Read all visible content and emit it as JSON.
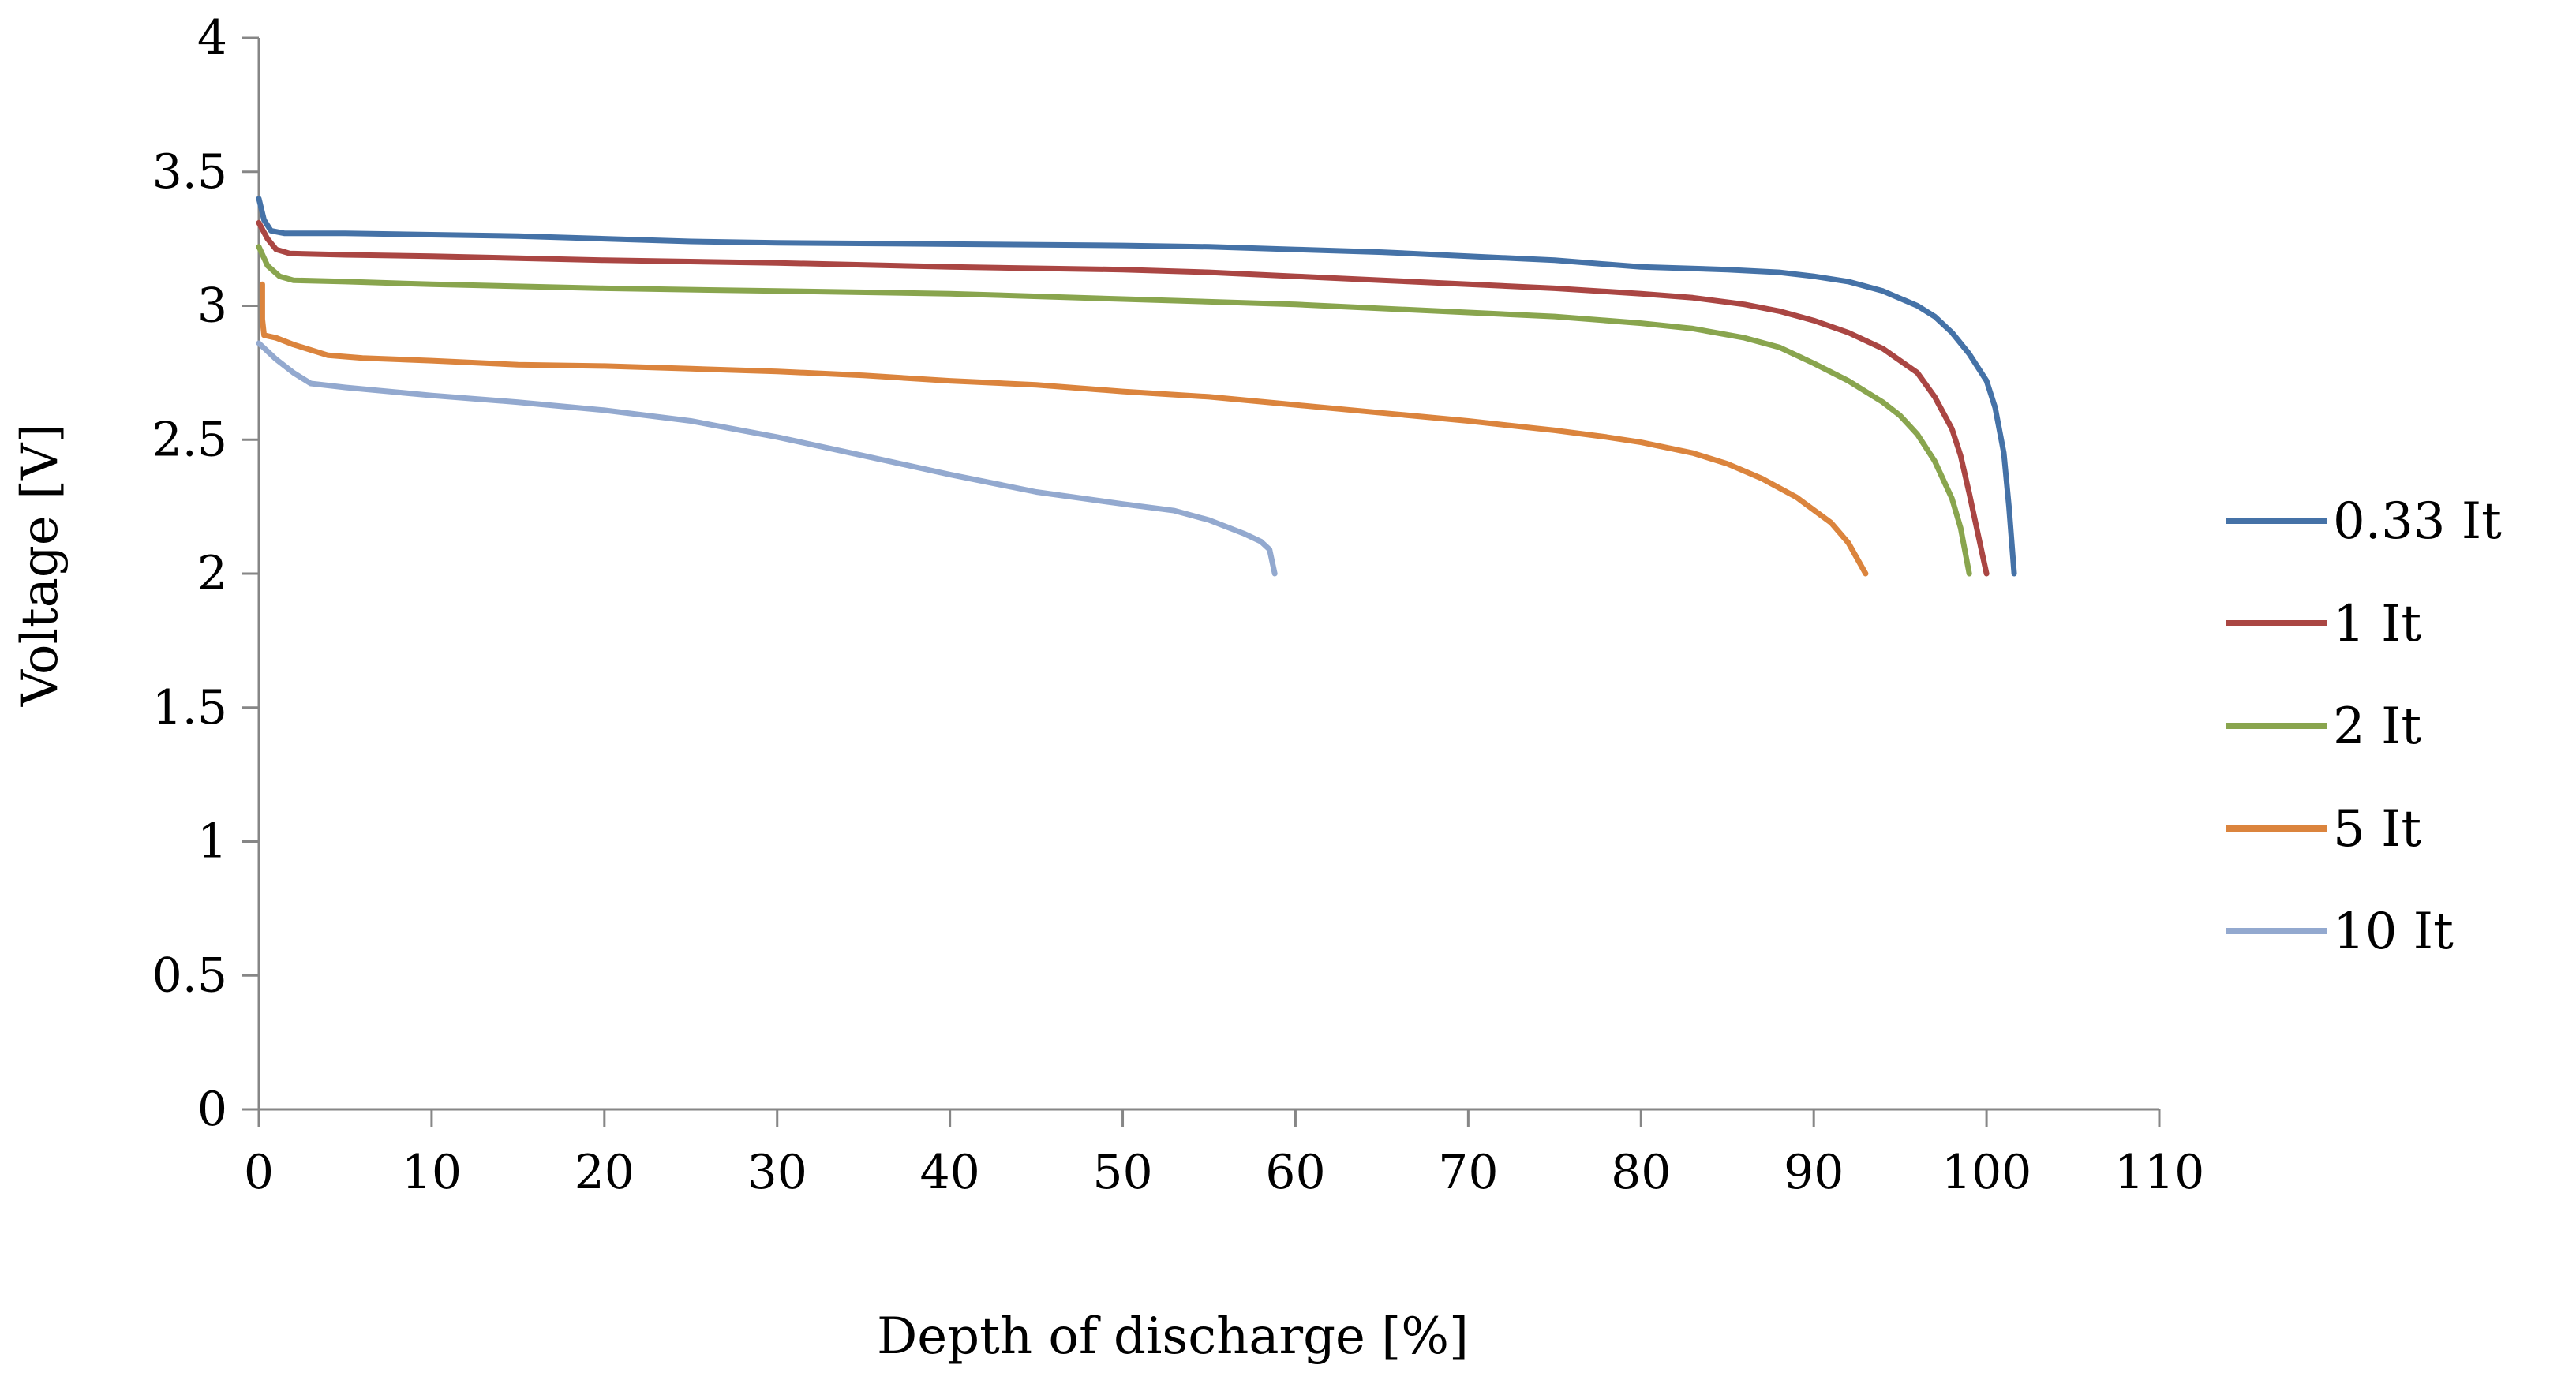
{
  "chart_data": {
    "type": "line",
    "title": "",
    "xlabel": "Depth of discharge  [%]",
    "ylabel": "Voltage [V]",
    "xlim": [
      0,
      110
    ],
    "ylim": [
      0,
      4
    ],
    "xticks": [
      0,
      10,
      20,
      30,
      40,
      50,
      60,
      70,
      80,
      90,
      100,
      110
    ],
    "yticks": [
      0,
      0.5,
      1,
      1.5,
      2,
      2.5,
      3,
      3.5,
      4
    ],
    "xtick_labels": [
      "0",
      "10",
      "20",
      "30",
      "40",
      "50",
      "60",
      "70",
      "80",
      "90",
      "100",
      "110"
    ],
    "ytick_labels": [
      "0",
      "0.5",
      "1",
      "1.5",
      "2",
      "2.5",
      "3",
      "3.5",
      "4"
    ],
    "grid": false,
    "legend": "right",
    "series": [
      {
        "name": "0.33 It",
        "color": "#4572A7",
        "points": [
          [
            0,
            3.4
          ],
          [
            0.3,
            3.32
          ],
          [
            0.7,
            3.28
          ],
          [
            1.5,
            3.27
          ],
          [
            5,
            3.27
          ],
          [
            10,
            3.265
          ],
          [
            15,
            3.26
          ],
          [
            20,
            3.25
          ],
          [
            25,
            3.24
          ],
          [
            30,
            3.235
          ],
          [
            40,
            3.23
          ],
          [
            50,
            3.225
          ],
          [
            55,
            3.22
          ],
          [
            60,
            3.21
          ],
          [
            65,
            3.2
          ],
          [
            70,
            3.185
          ],
          [
            75,
            3.17
          ],
          [
            80,
            3.145
          ],
          [
            85,
            3.135
          ],
          [
            88,
            3.125
          ],
          [
            90,
            3.11
          ],
          [
            92,
            3.09
          ],
          [
            94,
            3.055
          ],
          [
            96,
            3.0
          ],
          [
            97,
            2.96
          ],
          [
            98,
            2.9
          ],
          [
            99,
            2.82
          ],
          [
            100,
            2.72
          ],
          [
            100.5,
            2.62
          ],
          [
            101,
            2.45
          ],
          [
            101.3,
            2.25
          ],
          [
            101.6,
            2.0
          ]
        ]
      },
      {
        "name": "1 It",
        "color": "#AA4643",
        "points": [
          [
            0,
            3.31
          ],
          [
            0.5,
            3.25
          ],
          [
            1,
            3.21
          ],
          [
            1.8,
            3.195
          ],
          [
            5,
            3.19
          ],
          [
            10,
            3.185
          ],
          [
            20,
            3.17
          ],
          [
            30,
            3.16
          ],
          [
            40,
            3.145
          ],
          [
            50,
            3.135
          ],
          [
            55,
            3.125
          ],
          [
            60,
            3.11
          ],
          [
            65,
            3.095
          ],
          [
            70,
            3.08
          ],
          [
            75,
            3.065
          ],
          [
            80,
            3.045
          ],
          [
            83,
            3.03
          ],
          [
            86,
            3.005
          ],
          [
            88,
            2.98
          ],
          [
            90,
            2.945
          ],
          [
            92,
            2.9
          ],
          [
            94,
            2.84
          ],
          [
            96,
            2.75
          ],
          [
            97,
            2.66
          ],
          [
            98,
            2.54
          ],
          [
            98.5,
            2.44
          ],
          [
            99,
            2.3
          ],
          [
            99.5,
            2.15
          ],
          [
            100,
            2.0
          ]
        ]
      },
      {
        "name": "2 It",
        "color": "#89A54E",
        "points": [
          [
            0,
            3.22
          ],
          [
            0.5,
            3.15
          ],
          [
            1.2,
            3.11
          ],
          [
            2,
            3.095
          ],
          [
            5,
            3.09
          ],
          [
            10,
            3.08
          ],
          [
            20,
            3.065
          ],
          [
            30,
            3.055
          ],
          [
            40,
            3.045
          ],
          [
            50,
            3.025
          ],
          [
            60,
            3.005
          ],
          [
            70,
            2.975
          ],
          [
            75,
            2.96
          ],
          [
            80,
            2.935
          ],
          [
            83,
            2.915
          ],
          [
            86,
            2.88
          ],
          [
            88,
            2.845
          ],
          [
            90,
            2.785
          ],
          [
            92,
            2.72
          ],
          [
            94,
            2.64
          ],
          [
            95,
            2.59
          ],
          [
            96,
            2.52
          ],
          [
            97,
            2.42
          ],
          [
            98,
            2.28
          ],
          [
            98.5,
            2.17
          ],
          [
            99,
            2.0
          ]
        ]
      },
      {
        "name": "5 It",
        "color": "#DB843D",
        "points": [
          [
            0.2,
            3.08
          ],
          [
            0.2,
            2.95
          ],
          [
            0.3,
            2.89
          ],
          [
            1,
            2.88
          ],
          [
            2,
            2.855
          ],
          [
            3,
            2.835
          ],
          [
            4,
            2.815
          ],
          [
            6,
            2.805
          ],
          [
            10,
            2.795
          ],
          [
            15,
            2.78
          ],
          [
            20,
            2.775
          ],
          [
            25,
            2.765
          ],
          [
            30,
            2.755
          ],
          [
            35,
            2.74
          ],
          [
            40,
            2.72
          ],
          [
            45,
            2.705
          ],
          [
            50,
            2.68
          ],
          [
            55,
            2.66
          ],
          [
            60,
            2.63
          ],
          [
            65,
            2.6
          ],
          [
            70,
            2.57
          ],
          [
            75,
            2.535
          ],
          [
            78,
            2.51
          ],
          [
            80,
            2.49
          ],
          [
            83,
            2.45
          ],
          [
            85,
            2.41
          ],
          [
            87,
            2.355
          ],
          [
            89,
            2.285
          ],
          [
            91,
            2.19
          ],
          [
            92,
            2.115
          ],
          [
            93,
            2.0
          ]
        ]
      },
      {
        "name": "10 It",
        "color": "#93A9CF",
        "points": [
          [
            0,
            2.86
          ],
          [
            1,
            2.8
          ],
          [
            2,
            2.75
          ],
          [
            3,
            2.71
          ],
          [
            5,
            2.695
          ],
          [
            10,
            2.665
          ],
          [
            15,
            2.64
          ],
          [
            20,
            2.61
          ],
          [
            25,
            2.57
          ],
          [
            30,
            2.51
          ],
          [
            35,
            2.44
          ],
          [
            40,
            2.37
          ],
          [
            45,
            2.305
          ],
          [
            50,
            2.26
          ],
          [
            53,
            2.235
          ],
          [
            55,
            2.2
          ],
          [
            57,
            2.15
          ],
          [
            58,
            2.12
          ],
          [
            58.5,
            2.09
          ],
          [
            58.8,
            2.0
          ]
        ]
      }
    ]
  }
}
